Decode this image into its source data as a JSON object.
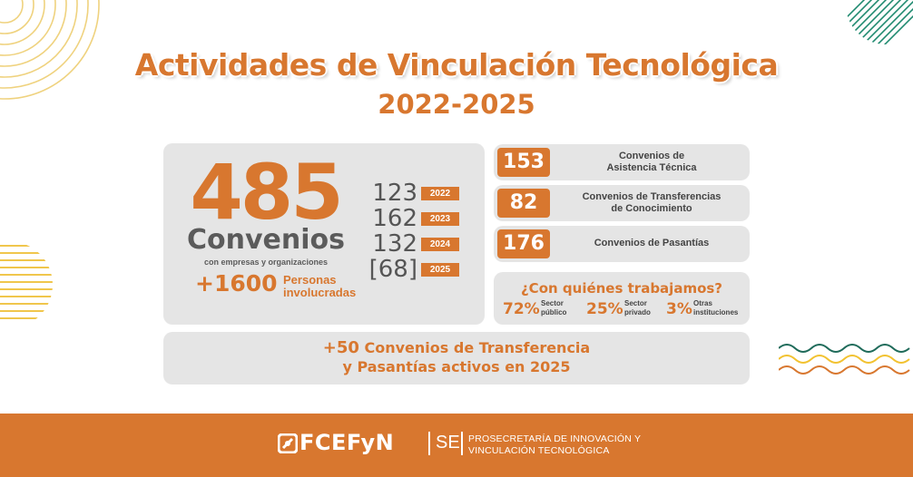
{
  "title": "Actividades de Vinculación Tecnológica",
  "subtitle": "2022-2025",
  "total": {
    "number": "485",
    "label": "Convenios",
    "sub": "con empresas y organizaciones"
  },
  "people": {
    "number": "+1600",
    "label_line1": "Personas",
    "label_line2": "involucradas"
  },
  "years": [
    {
      "value": "123",
      "year": "2022"
    },
    {
      "value": "162",
      "year": "2023"
    },
    {
      "value": "132",
      "year": "2024"
    },
    {
      "value": "[68]",
      "year": "2025"
    }
  ],
  "stats": [
    {
      "number": "153",
      "line1": "Convenios de",
      "line2": "Asistencia Técnica"
    },
    {
      "number": "82",
      "line1": "Convenios de Transferencias",
      "line2": "de Conocimiento"
    },
    {
      "number": "176",
      "line1": "Convenios de Pasantías",
      "line2": ""
    }
  ],
  "who": {
    "title": "¿Con quiénes trabajamos?",
    "items": [
      {
        "pct": "72%",
        "line1": "Sector",
        "line2": "público"
      },
      {
        "pct": "25%",
        "line1": "Sector",
        "line2": "privado"
      },
      {
        "pct": "3%",
        "line1": "Otras",
        "line2": "instituciones"
      }
    ]
  },
  "active": {
    "plus": "+50",
    "line1": "Convenios de Transferencia",
    "line2": "y Pasantías activos en 2025"
  },
  "footer": {
    "logo": "FCEFyN",
    "unit": "SE",
    "desc_line1": "PROSECRETARÍA DE INNOVACIÓN Y",
    "desc_line2": "VINCULACIÓN TECNOLÓGICA"
  },
  "colors": {
    "accent": "#d8772f",
    "card": "#e5e5e5",
    "text": "#5b5b5b",
    "teal": "#1f8a70",
    "yellow": "#f2c230"
  }
}
